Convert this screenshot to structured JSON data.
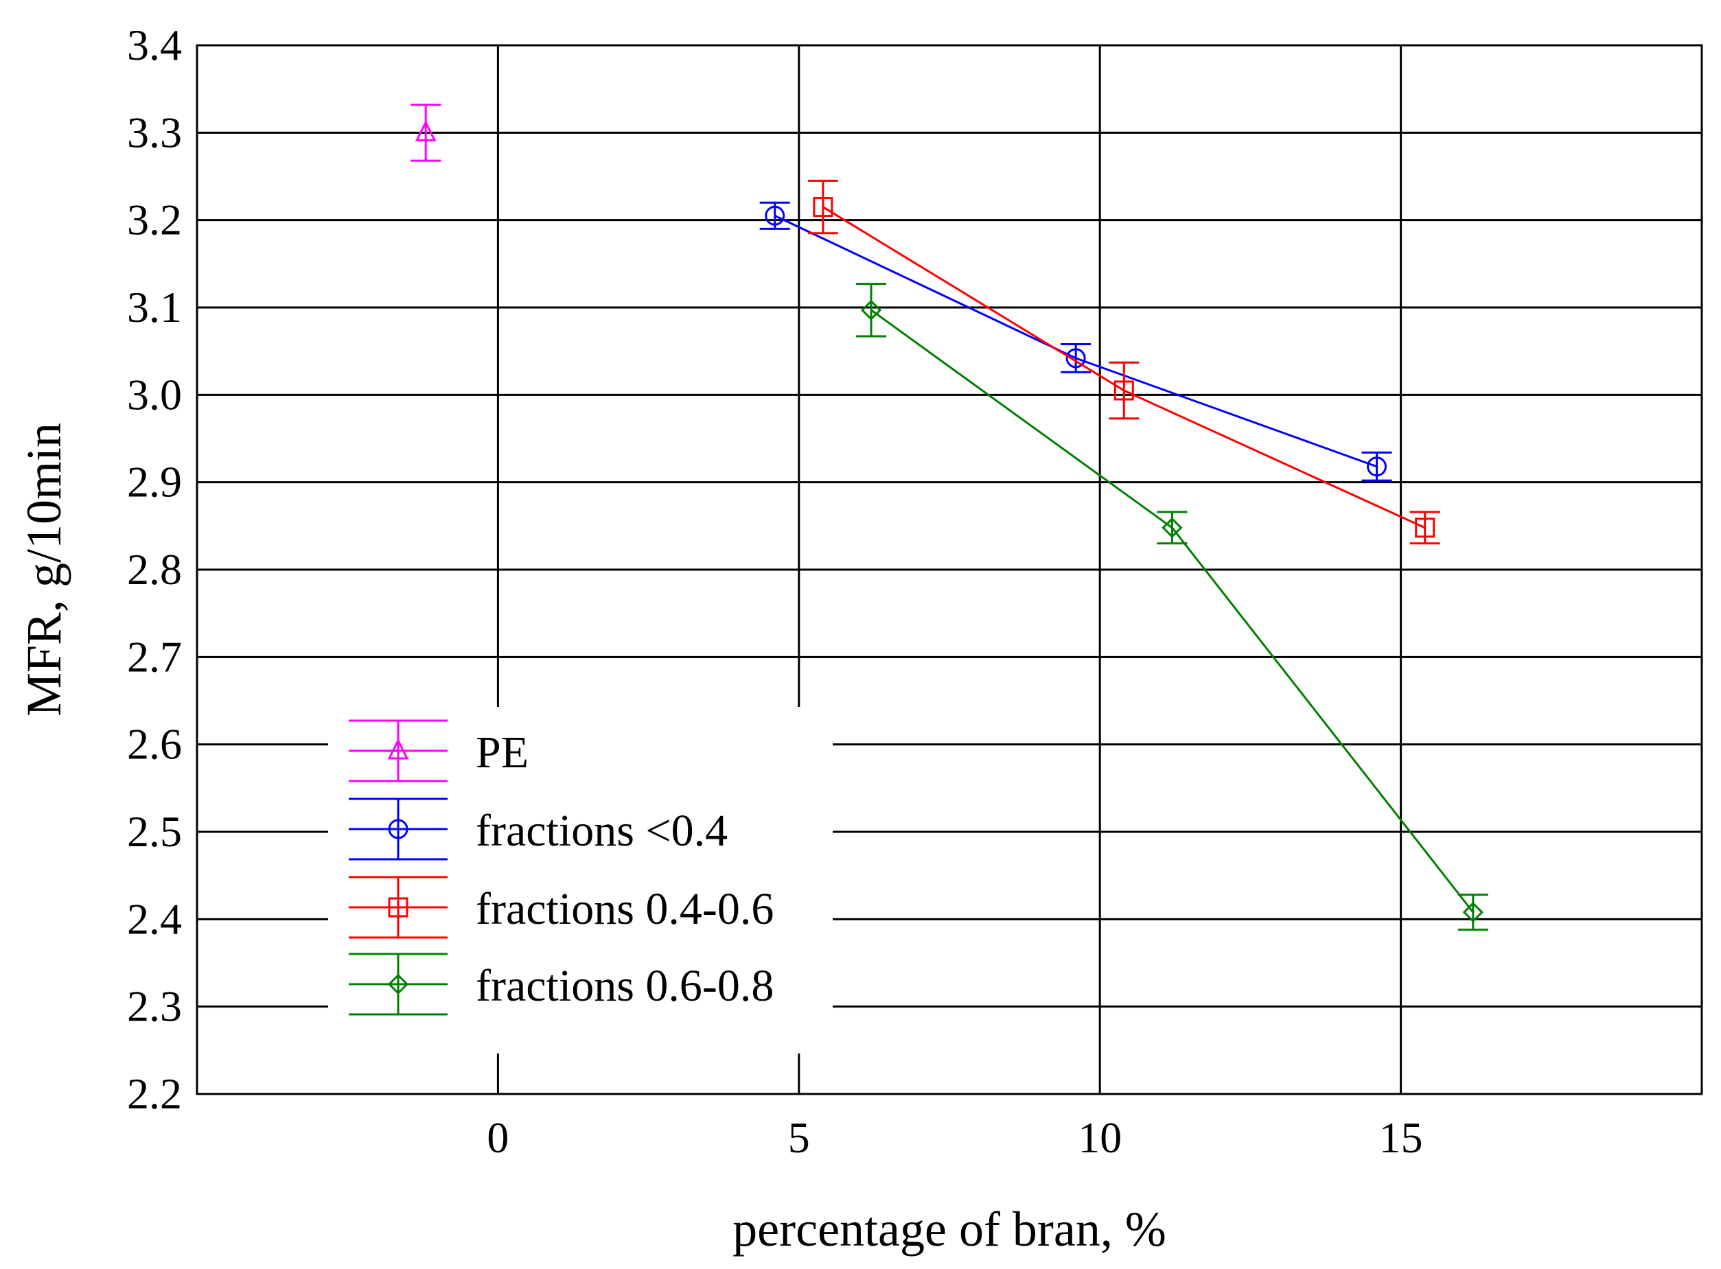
{
  "chart_data": {
    "type": "scatter",
    "title": "",
    "xlabel": "percentage of bran, %",
    "ylabel": "MFR, g/10min",
    "xlim": [
      -5,
      20
    ],
    "ylim": [
      2.2,
      3.4
    ],
    "grid": true,
    "x_ticks": [
      0,
      5,
      10,
      15
    ],
    "x_tick_labels": [
      "0",
      "5",
      "10",
      "15"
    ],
    "y_ticks": [
      2.2,
      2.3,
      2.4,
      2.5,
      2.6,
      2.7,
      2.8,
      2.9,
      3.0,
      3.1,
      3.2,
      3.3,
      3.4
    ],
    "y_tick_labels": [
      "2.2",
      "2.3",
      "2.4",
      "2.5",
      "2.6",
      "2.7",
      "2.8",
      "2.9",
      "3.0",
      "3.1",
      "3.2",
      "3.3",
      "3.4"
    ],
    "legend_position": "bottom-left",
    "series": [
      {
        "name": "PE",
        "color": "#ff00ff",
        "marker": "triangle",
        "line": false,
        "x": [
          -1.2
        ],
        "y": [
          3.3
        ],
        "err": [
          0.032
        ]
      },
      {
        "name": "fractions <0.4",
        "color": "#0000ff",
        "marker": "circle",
        "line": true,
        "x": [
          4.6,
          9.6,
          14.6
        ],
        "y": [
          3.205,
          3.042,
          2.918
        ],
        "err": [
          0.015,
          0.016,
          0.016
        ]
      },
      {
        "name": "fractions 0.4-0.6",
        "color": "#ff0000",
        "marker": "square",
        "line": true,
        "x": [
          5.4,
          10.4,
          15.4
        ],
        "y": [
          3.215,
          3.005,
          2.848
        ],
        "err": [
          0.03,
          0.032,
          0.018
        ]
      },
      {
        "name": "fractions 0.6-0.8",
        "color": "#008000",
        "marker": "diamond",
        "line": true,
        "x": [
          6.2,
          11.2,
          16.2
        ],
        "y": [
          3.097,
          2.848,
          2.408
        ],
        "err": [
          0.03,
          0.018,
          0.02
        ]
      }
    ]
  }
}
